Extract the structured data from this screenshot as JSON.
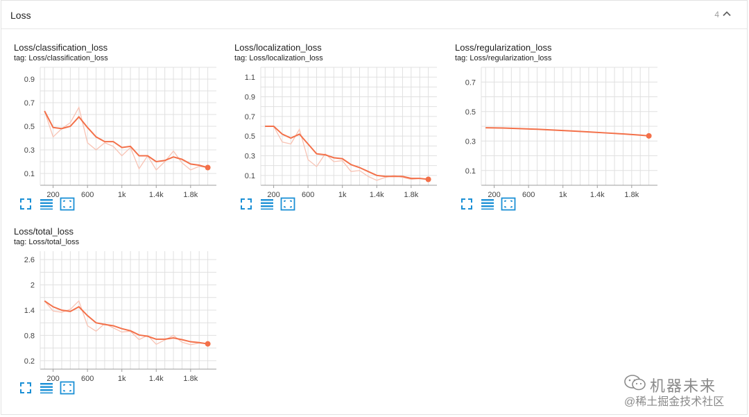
{
  "section": {
    "title": "Loss",
    "count": "4"
  },
  "colors": {
    "series": "#f37049",
    "raw": "#f8c3b4",
    "grid": "#e0e0e0",
    "axis": "#9e9e9e",
    "action": "#1a8fd5"
  },
  "chart_data": [
    {
      "id": "classification",
      "type": "line",
      "title": "Loss/classification_loss",
      "tag": "tag: Loss/classification_loss",
      "xlim": [
        50,
        2100
      ],
      "ylim": [
        0.0,
        1.0
      ],
      "x_ticks": [
        200,
        600,
        1000,
        1400,
        1800
      ],
      "x_tick_labels": [
        "200",
        "600",
        "1k",
        "1.4k",
        "1.8k"
      ],
      "y_ticks": [
        0.1,
        0.3,
        0.5,
        0.7,
        0.9
      ],
      "y_tick_labels": [
        "0.1",
        "0.3",
        "0.5",
        "0.7",
        "0.9"
      ],
      "x": [
        100,
        200,
        300,
        400,
        500,
        600,
        700,
        800,
        900,
        1000,
        1100,
        1200,
        1300,
        1400,
        1500,
        1600,
        1700,
        1800,
        1900,
        2000
      ],
      "smoothed": [
        0.63,
        0.49,
        0.48,
        0.5,
        0.58,
        0.49,
        0.41,
        0.37,
        0.37,
        0.32,
        0.33,
        0.25,
        0.25,
        0.2,
        0.21,
        0.24,
        0.22,
        0.18,
        0.17,
        0.15
      ],
      "raw": [
        0.63,
        0.41,
        0.48,
        0.53,
        0.66,
        0.36,
        0.3,
        0.36,
        0.33,
        0.25,
        0.32,
        0.14,
        0.25,
        0.13,
        0.2,
        0.29,
        0.19,
        0.13,
        0.16,
        0.15
      ]
    },
    {
      "id": "localization",
      "type": "line",
      "title": "Loss/localization_loss",
      "tag": "tag: Loss/localization_loss",
      "xlim": [
        50,
        2100
      ],
      "ylim": [
        0.0,
        1.2
      ],
      "x_ticks": [
        200,
        600,
        1000,
        1400,
        1800
      ],
      "x_tick_labels": [
        "200",
        "600",
        "1k",
        "1.4k",
        "1.8k"
      ],
      "y_ticks": [
        0.1,
        0.3,
        0.5,
        0.7,
        0.9,
        1.1
      ],
      "y_tick_labels": [
        "0.1",
        "0.3",
        "0.5",
        "0.7",
        "0.9",
        "1.1"
      ],
      "x": [
        100,
        200,
        300,
        400,
        500,
        600,
        700,
        800,
        900,
        1000,
        1100,
        1200,
        1300,
        1400,
        1500,
        1600,
        1700,
        1800,
        1900,
        2000
      ],
      "smoothed": [
        0.6,
        0.6,
        0.52,
        0.48,
        0.52,
        0.42,
        0.32,
        0.31,
        0.28,
        0.27,
        0.21,
        0.18,
        0.14,
        0.1,
        0.09,
        0.09,
        0.09,
        0.07,
        0.07,
        0.06
      ],
      "raw": [
        0.6,
        0.6,
        0.44,
        0.42,
        0.57,
        0.26,
        0.19,
        0.32,
        0.24,
        0.25,
        0.14,
        0.15,
        0.09,
        0.05,
        0.08,
        0.1,
        0.08,
        0.06,
        0.07,
        0.06
      ]
    },
    {
      "id": "regularization",
      "type": "line",
      "title": "Loss/regularization_loss",
      "tag": "tag: Loss/regularization_loss",
      "xlim": [
        50,
        2100
      ],
      "ylim": [
        0.0,
        0.8
      ],
      "x_ticks": [
        200,
        600,
        1000,
        1400,
        1800
      ],
      "x_tick_labels": [
        "200",
        "600",
        "1k",
        "1.4k",
        "1.8k"
      ],
      "y_ticks": [
        0.1,
        0.3,
        0.5,
        0.7
      ],
      "y_tick_labels": [
        "0.1",
        "0.3",
        "0.5",
        "0.7"
      ],
      "x": [
        100,
        300,
        500,
        700,
        900,
        1100,
        1300,
        1500,
        1700,
        1900,
        2000
      ],
      "smoothed": [
        0.39,
        0.388,
        0.384,
        0.38,
        0.374,
        0.368,
        0.362,
        0.355,
        0.348,
        0.34,
        0.335
      ],
      "raw": [
        0.39,
        0.388,
        0.384,
        0.38,
        0.374,
        0.368,
        0.362,
        0.355,
        0.348,
        0.34,
        0.335
      ]
    },
    {
      "id": "total",
      "type": "line",
      "title": "Loss/total_loss",
      "tag": "tag: Loss/total_loss",
      "xlim": [
        50,
        2100
      ],
      "ylim": [
        0.0,
        2.8
      ],
      "x_ticks": [
        200,
        600,
        1000,
        1400,
        1800
      ],
      "x_tick_labels": [
        "200",
        "600",
        "1k",
        "1.4k",
        "1.8k"
      ],
      "y_ticks": [
        0.2,
        0.8,
        1.4,
        2.0,
        2.6
      ],
      "y_tick_labels": [
        "0.2",
        "0.8",
        "1.4",
        "2",
        "2.6"
      ],
      "x": [
        100,
        200,
        300,
        400,
        500,
        600,
        700,
        800,
        900,
        1000,
        1100,
        1200,
        1300,
        1400,
        1500,
        1600,
        1700,
        1800,
        1900,
        2000
      ],
      "smoothed": [
        1.62,
        1.48,
        1.4,
        1.37,
        1.48,
        1.27,
        1.1,
        1.06,
        1.03,
        0.96,
        0.91,
        0.81,
        0.78,
        0.71,
        0.71,
        0.74,
        0.7,
        0.65,
        0.63,
        0.6
      ],
      "raw": [
        1.62,
        1.38,
        1.35,
        1.42,
        1.62,
        1.03,
        0.9,
        1.08,
        0.98,
        0.88,
        0.9,
        0.7,
        0.8,
        0.59,
        0.69,
        0.8,
        0.64,
        0.58,
        0.62,
        0.6
      ]
    }
  ],
  "watermark": {
    "line1": "机器未来",
    "line2": "@稀土掘金技术社区"
  }
}
